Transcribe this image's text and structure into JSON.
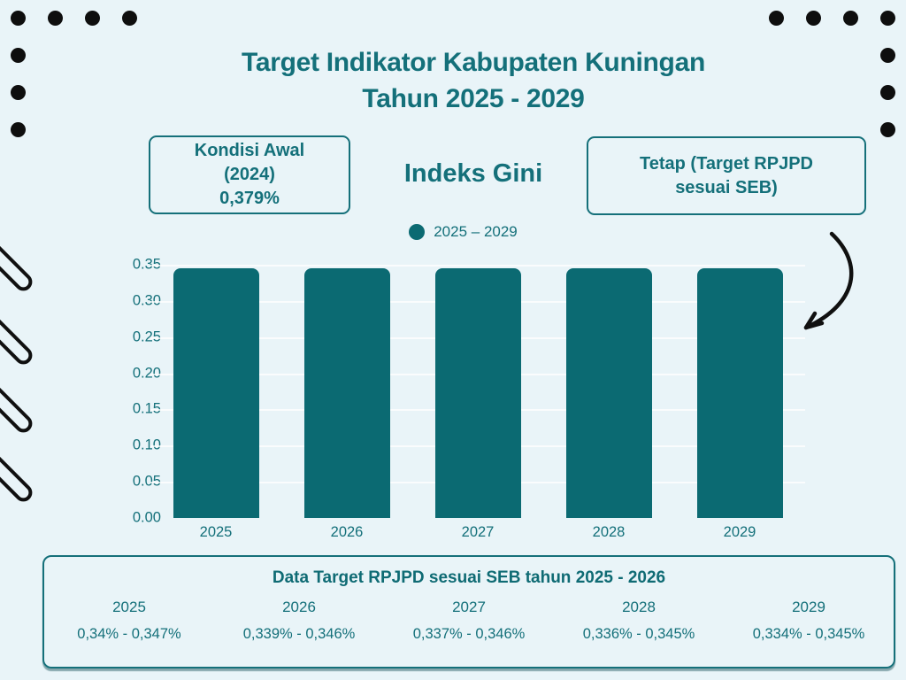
{
  "page": {
    "background_color": "#e9f4f8",
    "accent_color": "#0b6a72",
    "text_color": "#14707a",
    "decoration_color": "#101010"
  },
  "title": {
    "line1": "Target Indikator Kabupaten Kuningan",
    "line2": "Tahun 2025 - 2029"
  },
  "kondisi_awal_box": {
    "line1": "Kondisi Awal",
    "line2": "(2024)",
    "line3": "0,379%"
  },
  "indicator_title": "Indeks Gini",
  "tetap_box": {
    "line1": "Tetap (Target RPJPD",
    "line2": "sesuai SEB)"
  },
  "legend": {
    "label": "2025 – 2029",
    "dot_color": "#0b6a72"
  },
  "chart_data": {
    "type": "bar",
    "title": "Indeks Gini",
    "categories": [
      "2025",
      "2026",
      "2027",
      "2028",
      "2029"
    ],
    "values": [
      0.345,
      0.345,
      0.345,
      0.345,
      0.345
    ],
    "series_label": "2025 – 2029",
    "bar_color": "#0b6a72",
    "xlabel": "",
    "ylabel": "",
    "ylim": [
      0,
      0.35
    ],
    "yticks": [
      0.0,
      0.05,
      0.1,
      0.15,
      0.2,
      0.25,
      0.3,
      0.35
    ],
    "ytick_labels": [
      "0.00",
      "0.05",
      "0.10",
      "0.15",
      "0.20",
      "0.25",
      "0.30",
      "0.35"
    ],
    "grid": true,
    "legend_position": "top"
  },
  "data_box": {
    "title": "Data Target RPJPD sesuai SEB tahun 2025 - 2026",
    "columns": [
      {
        "year": "2025",
        "range": "0,34% - 0,347%"
      },
      {
        "year": "2026",
        "range": "0,339% - 0,346%"
      },
      {
        "year": "2027",
        "range": "0,337% - 0,346%"
      },
      {
        "year": "2028",
        "range": "0,336% - 0,345%"
      },
      {
        "year": "2029",
        "range": "0,334% - 0,345%"
      }
    ]
  }
}
